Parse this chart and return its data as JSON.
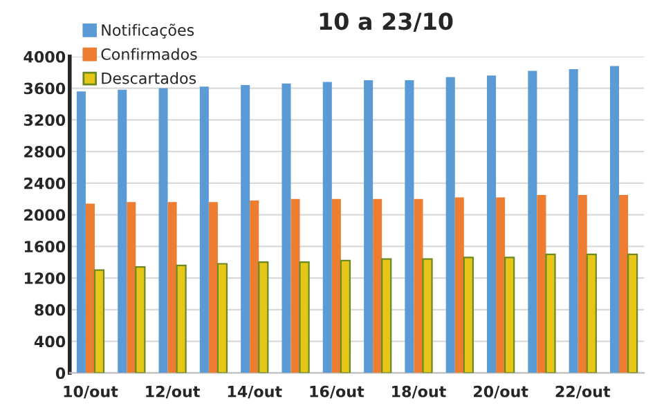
{
  "chart_data": {
    "type": "bar",
    "title": "10 a 23/10",
    "categories": [
      "10/out",
      null,
      "12/out",
      null,
      "14/out",
      null,
      "16/out",
      null,
      "18/out",
      null,
      "20/out",
      null,
      "22/out",
      null
    ],
    "series": [
      {
        "name": "Notificações",
        "color": "#5b9bd5",
        "values": [
          3560,
          3580,
          3600,
          3620,
          3640,
          3660,
          3680,
          3700,
          3700,
          3740,
          3760,
          3820,
          3840,
          3880
        ]
      },
      {
        "name": "Confirmados",
        "color": "#ed7d31",
        "values": [
          2140,
          2160,
          2160,
          2160,
          2180,
          2200,
          2200,
          2200,
          2200,
          2220,
          2220,
          2250,
          2250,
          2250
        ]
      },
      {
        "name": "Descartados",
        "color": "#e6c619",
        "values": [
          1300,
          1340,
          1360,
          1380,
          1400,
          1400,
          1420,
          1440,
          1440,
          1460,
          1460,
          1500,
          1500,
          1500
        ]
      }
    ],
    "ylim": [
      0,
      4000
    ],
    "yticks": [
      0,
      400,
      800,
      1200,
      1600,
      2000,
      2400,
      2800,
      3200,
      3600,
      4000
    ],
    "grid": "y",
    "legend": "top left"
  }
}
